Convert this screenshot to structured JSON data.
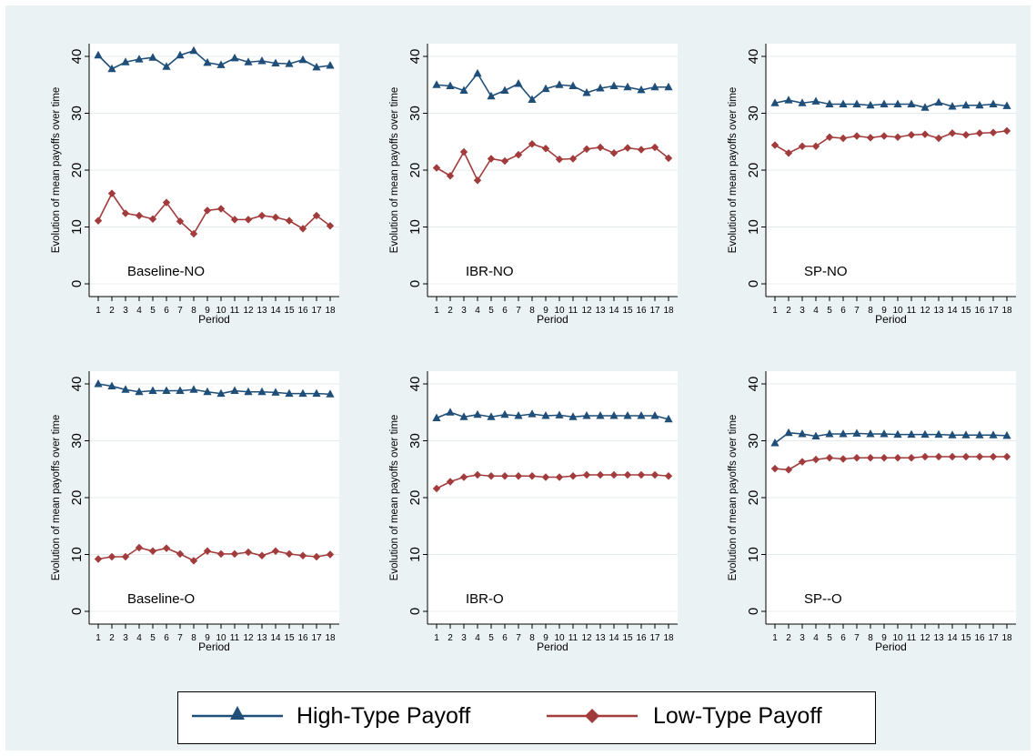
{
  "colors": {
    "high": "#1f4e79",
    "low": "#a23b3b",
    "frame_bg": "#eaf2f3",
    "plot_bg": "#ffffff",
    "grid": "#e4ecee"
  },
  "legend": {
    "high_label": "High-Type Payoff",
    "low_label": "Low-Type Payoff"
  },
  "chart_data": [
    {
      "type": "line",
      "annotation": "Baseline-NO",
      "xlabel": "Period",
      "ylabel": "Evolution of mean payoffs over time",
      "x": [
        1,
        2,
        3,
        4,
        5,
        6,
        7,
        8,
        9,
        10,
        11,
        12,
        13,
        14,
        15,
        16,
        17,
        18
      ],
      "ylim": [
        0,
        40
      ],
      "yticks": [
        0,
        10,
        20,
        30,
        40
      ],
      "grid": true,
      "series": [
        {
          "name": "High-Type Payoff",
          "values": [
            40.2,
            37.8,
            39.0,
            39.5,
            39.8,
            38.2,
            40.2,
            41.0,
            38.9,
            38.5,
            39.7,
            39.0,
            39.2,
            38.8,
            38.7,
            39.4,
            38.1,
            38.4
          ]
        },
        {
          "name": "Low-Type Payoff",
          "values": [
            11.1,
            15.9,
            12.4,
            12.0,
            11.4,
            14.3,
            11.0,
            8.8,
            12.9,
            13.2,
            11.3,
            11.3,
            12.0,
            11.7,
            11.1,
            9.7,
            12.0,
            10.2
          ]
        }
      ]
    },
    {
      "type": "line",
      "annotation": "IBR-NO",
      "xlabel": "Period",
      "ylabel": "Evolution of mean payoffs over time",
      "x": [
        1,
        2,
        3,
        4,
        5,
        6,
        7,
        8,
        9,
        10,
        11,
        12,
        13,
        14,
        15,
        16,
        17,
        18
      ],
      "ylim": [
        0,
        40
      ],
      "yticks": [
        0,
        10,
        20,
        30,
        40
      ],
      "grid": true,
      "series": [
        {
          "name": "High-Type Payoff",
          "values": [
            35.0,
            34.8,
            34.0,
            37.0,
            33.0,
            34.0,
            35.2,
            32.4,
            34.3,
            35.0,
            34.8,
            33.6,
            34.4,
            34.8,
            34.6,
            34.1,
            34.6,
            34.6
          ]
        },
        {
          "name": "Low-Type Payoff",
          "values": [
            20.4,
            19.0,
            23.2,
            18.2,
            22.0,
            21.6,
            22.7,
            24.6,
            23.8,
            21.9,
            22.0,
            23.7,
            24.0,
            23.0,
            23.9,
            23.6,
            24.0,
            22.1
          ]
        }
      ]
    },
    {
      "type": "line",
      "annotation": "SP-NO",
      "xlabel": "Period",
      "ylabel": "Evolution of mean payoffs over time",
      "x": [
        1,
        2,
        3,
        4,
        5,
        6,
        7,
        8,
        9,
        10,
        11,
        12,
        13,
        14,
        15,
        16,
        17,
        18
      ],
      "ylim": [
        0,
        40
      ],
      "yticks": [
        0,
        10,
        20,
        30,
        40
      ],
      "grid": true,
      "series": [
        {
          "name": "High-Type Payoff",
          "values": [
            31.8,
            32.3,
            31.8,
            32.1,
            31.6,
            31.6,
            31.6,
            31.4,
            31.6,
            31.6,
            31.6,
            31.0,
            31.9,
            31.2,
            31.4,
            31.4,
            31.6,
            31.3
          ]
        },
        {
          "name": "Low-Type Payoff",
          "values": [
            24.4,
            23.0,
            24.2,
            24.2,
            25.8,
            25.6,
            26.0,
            25.7,
            26.0,
            25.8,
            26.2,
            26.3,
            25.6,
            26.5,
            26.2,
            26.5,
            26.6,
            26.9
          ]
        }
      ]
    },
    {
      "type": "line",
      "annotation": "Baseline-O",
      "xlabel": "Period",
      "ylabel": "Evolution of mean payoffs over time",
      "x": [
        1,
        2,
        3,
        4,
        5,
        6,
        7,
        8,
        9,
        10,
        11,
        12,
        13,
        14,
        15,
        16,
        17,
        18
      ],
      "ylim": [
        0,
        40
      ],
      "yticks": [
        0,
        10,
        20,
        30,
        40
      ],
      "grid": true,
      "series": [
        {
          "name": "High-Type Payoff",
          "values": [
            40.0,
            39.6,
            39.0,
            38.6,
            38.8,
            38.8,
            38.8,
            39.0,
            38.6,
            38.3,
            38.8,
            38.6,
            38.6,
            38.5,
            38.3,
            38.3,
            38.3,
            38.2
          ]
        },
        {
          "name": "Low-Type Payoff",
          "values": [
            9.2,
            9.6,
            9.6,
            11.2,
            10.6,
            11.1,
            10.1,
            8.9,
            10.6,
            10.1,
            10.1,
            10.4,
            9.8,
            10.6,
            10.1,
            9.8,
            9.6,
            10.0
          ]
        }
      ]
    },
    {
      "type": "line",
      "annotation": "IBR-O",
      "xlabel": "Period",
      "ylabel": "Evolution of mean payoffs over time",
      "x": [
        1,
        2,
        3,
        4,
        5,
        6,
        7,
        8,
        9,
        10,
        11,
        12,
        13,
        14,
        15,
        16,
        17,
        18
      ],
      "ylim": [
        0,
        40
      ],
      "yticks": [
        0,
        10,
        20,
        30,
        40
      ],
      "grid": true,
      "series": [
        {
          "name": "High-Type Payoff",
          "values": [
            34.0,
            35.0,
            34.2,
            34.6,
            34.2,
            34.6,
            34.4,
            34.7,
            34.4,
            34.5,
            34.2,
            34.4,
            34.4,
            34.4,
            34.4,
            34.4,
            34.4,
            33.8
          ]
        },
        {
          "name": "Low-Type Payoff",
          "values": [
            21.6,
            22.8,
            23.6,
            24.0,
            23.8,
            23.8,
            23.8,
            23.8,
            23.6,
            23.6,
            23.8,
            24.0,
            24.0,
            24.0,
            24.0,
            24.0,
            24.0,
            23.8
          ]
        }
      ]
    },
    {
      "type": "line",
      "annotation": "SP--O",
      "xlabel": "Period",
      "ylabel": "Evolution of mean payoffs over time",
      "x": [
        1,
        2,
        3,
        4,
        5,
        6,
        7,
        8,
        9,
        10,
        11,
        12,
        13,
        14,
        15,
        16,
        17,
        18
      ],
      "ylim": [
        0,
        40
      ],
      "yticks": [
        0,
        10,
        20,
        30,
        40
      ],
      "grid": true,
      "series": [
        {
          "name": "High-Type Payoff",
          "values": [
            29.6,
            31.4,
            31.2,
            30.8,
            31.2,
            31.2,
            31.3,
            31.2,
            31.2,
            31.1,
            31.1,
            31.1,
            31.1,
            31.0,
            31.0,
            31.0,
            31.0,
            30.9
          ]
        },
        {
          "name": "Low-Type Payoff",
          "values": [
            25.1,
            24.9,
            26.3,
            26.7,
            27.0,
            26.8,
            27.0,
            27.0,
            27.0,
            27.0,
            27.0,
            27.2,
            27.2,
            27.2,
            27.2,
            27.2,
            27.2,
            27.2
          ]
        }
      ]
    }
  ]
}
